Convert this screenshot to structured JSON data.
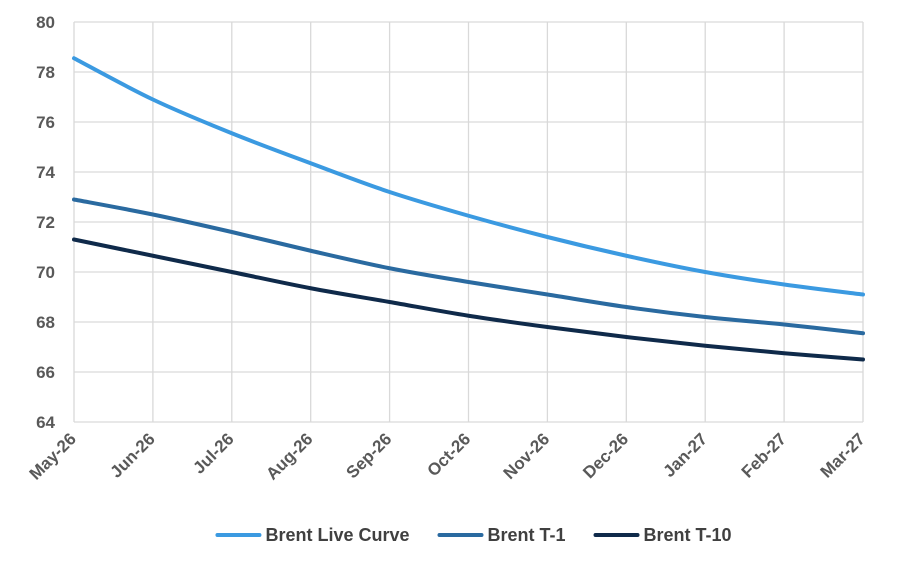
{
  "chart_data": {
    "type": "line",
    "title": "",
    "xlabel": "",
    "ylabel": "",
    "categories": [
      "May-26",
      "Jun-26",
      "Jul-26",
      "Aug-26",
      "Sep-26",
      "Oct-26",
      "Nov-26",
      "Dec-26",
      "Jan-27",
      "Feb-27",
      "Mar-27"
    ],
    "ylim": [
      64,
      80
    ],
    "yticks": [
      64,
      66,
      68,
      70,
      72,
      74,
      76,
      78,
      80
    ],
    "grid": true,
    "legend_position": "bottom",
    "series": [
      {
        "name": "Brent Live Curve",
        "color": "#3b9ae1",
        "values": [
          78.55,
          76.9,
          75.55,
          74.35,
          73.2,
          72.25,
          71.4,
          70.65,
          70.0,
          69.5,
          69.1
        ]
      },
      {
        "name": "Brent T-1",
        "color": "#2a6aa0",
        "values": [
          72.9,
          72.3,
          71.6,
          70.85,
          70.15,
          69.6,
          69.1,
          68.6,
          68.2,
          67.9,
          67.55
        ]
      },
      {
        "name": "Brent T-10",
        "color": "#0f2a4a",
        "values": [
          71.3,
          70.65,
          70.0,
          69.35,
          68.8,
          68.25,
          67.8,
          67.4,
          67.05,
          66.75,
          66.5
        ]
      }
    ]
  }
}
